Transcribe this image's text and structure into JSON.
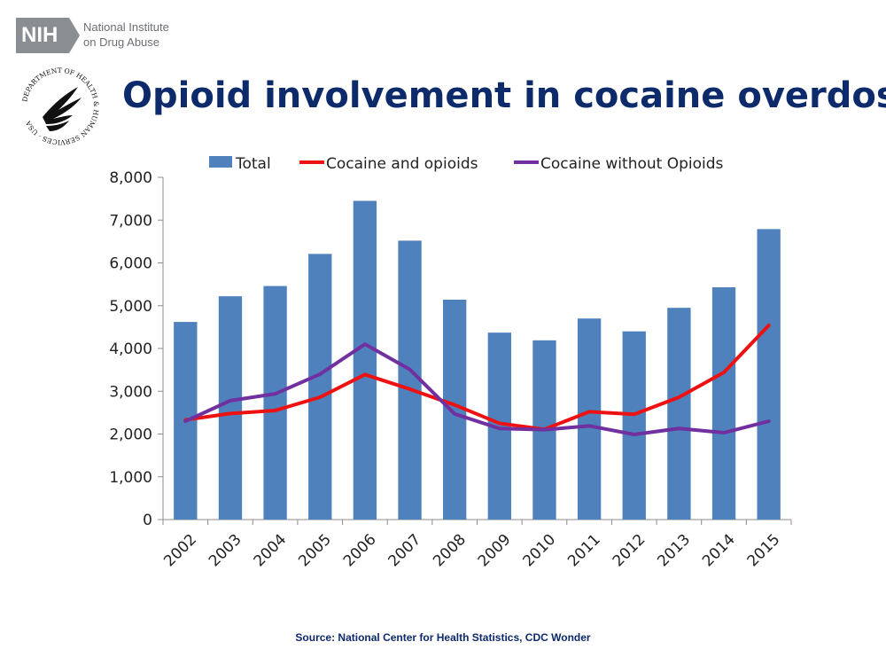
{
  "header": {
    "nih_logo_text": "NIH",
    "institute_line1": "National Institute",
    "institute_line2": "on Drug Abuse",
    "seal_text": "DEPARTMENT OF HEALTH & HUMAN SERVICES · USA",
    "title": "Opioid involvement in cocaine overdose"
  },
  "footer": {
    "source": "Source: National Center for Health Statistics, CDC Wonder"
  },
  "colors": {
    "title": "#0d2a6b",
    "bar": "#4f81bd",
    "line_with_opioids": "#ee1111",
    "line_without_opioids": "#7030a0"
  },
  "chart_data": {
    "type": "bar",
    "title": "",
    "xlabel": "",
    "ylabel": "",
    "categories": [
      "2002",
      "2003",
      "2004",
      "2005",
      "2006",
      "2007",
      "2008",
      "2009",
      "2010",
      "2011",
      "2012",
      "2013",
      "2014",
      "2015"
    ],
    "ylim": [
      0,
      8000
    ],
    "yticks": [
      0,
      1000,
      2000,
      3000,
      4000,
      5000,
      6000,
      7000,
      8000
    ],
    "ytick_labels": [
      "0",
      "1,000",
      "2,000",
      "3,000",
      "4,000",
      "5,000",
      "6,000",
      "7,000",
      "8,000"
    ],
    "grid": false,
    "legend_position": "top",
    "series": [
      {
        "name": "Total",
        "type": "bar",
        "color": "#4f81bd",
        "values": [
          4620,
          5220,
          5460,
          6210,
          7450,
          6520,
          5140,
          4370,
          4190,
          4700,
          4400,
          4950,
          5430,
          6790
        ]
      },
      {
        "name": "Cocaine and opioids",
        "type": "line",
        "color": "#ee1111",
        "values": [
          2330,
          2480,
          2550,
          2860,
          3390,
          3050,
          2680,
          2250,
          2110,
          2520,
          2460,
          2860,
          3440,
          4540
        ]
      },
      {
        "name": "Cocaine without Opioids",
        "type": "line",
        "color": "#7030a0",
        "values": [
          2300,
          2780,
          2940,
          3400,
          4100,
          3510,
          2470,
          2130,
          2100,
          2190,
          1990,
          2130,
          2030,
          2300
        ]
      }
    ]
  }
}
